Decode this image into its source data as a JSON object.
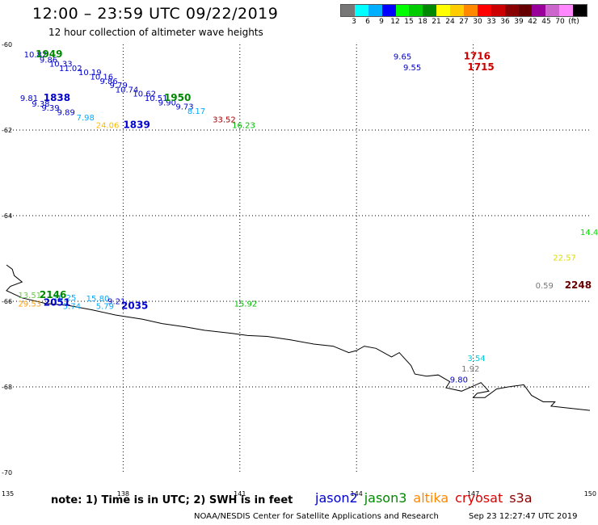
{
  "header": {
    "title": "12:00 – 23:59 UTC 09/22/2019",
    "subtitle": "12 hour collection of altimeter wave heights"
  },
  "scale": {
    "colors": [
      "#777777",
      "#00ffff",
      "#00b0ff",
      "#0000ff",
      "#00ff00",
      "#00cc00",
      "#008800",
      "#ffff00",
      "#ffcc00",
      "#ff8800",
      "#ff0000",
      "#cc0000",
      "#880000",
      "#660000",
      "#990099",
      "#cc66cc",
      "#ff88ff",
      "#000000"
    ],
    "labels": [
      "3",
      "6",
      "9",
      "12",
      "15",
      "18",
      "21",
      "24",
      "27",
      "30",
      "33",
      "36",
      "39",
      "42",
      "45",
      "70",
      "(ft)"
    ]
  },
  "map": {
    "lat_labels": [
      "-60",
      "-62",
      "-64",
      "-66",
      "-68",
      "-70"
    ],
    "lon_labels": [
      "135",
      "138",
      "141",
      "144",
      "147",
      "150"
    ],
    "lat_range": [
      -70,
      -60
    ],
    "lon_range": [
      135,
      150
    ],
    "grid": "dotted",
    "observations": [
      {
        "text": "10.82",
        "lon": 135.45,
        "lat": -60.3,
        "color": "#0000cc"
      },
      {
        "text": "9.86",
        "lon": 135.85,
        "lat": -60.42,
        "color": "#0000cc"
      },
      {
        "text": "10.33",
        "lon": 136.1,
        "lat": -60.52,
        "color": "#0000cc"
      },
      {
        "text": "11.02",
        "lon": 136.35,
        "lat": -60.62,
        "color": "#0000cc"
      },
      {
        "text": "10.19",
        "lon": 136.85,
        "lat": -60.72,
        "color": "#0000cc"
      },
      {
        "text": "10.16",
        "lon": 137.15,
        "lat": -60.82,
        "color": "#0000cc"
      },
      {
        "text": "9.86",
        "lon": 137.4,
        "lat": -60.92,
        "color": "#0000cc"
      },
      {
        "text": "9.79",
        "lon": 137.65,
        "lat": -61.02,
        "color": "#0000cc"
      },
      {
        "text": "10.74",
        "lon": 137.8,
        "lat": -61.12,
        "color": "#0000cc"
      },
      {
        "text": "10.62",
        "lon": 138.25,
        "lat": -61.22,
        "color": "#0000cc"
      },
      {
        "text": "10.51",
        "lon": 138.55,
        "lat": -61.32,
        "color": "#0000cc"
      },
      {
        "text": "9.90",
        "lon": 138.9,
        "lat": -61.42,
        "color": "#0000cc"
      },
      {
        "text": "9.73",
        "lon": 139.35,
        "lat": -61.52,
        "color": "#0000cc"
      },
      {
        "text": "8.17",
        "lon": 139.65,
        "lat": -61.62,
        "color": "#00aaff"
      },
      {
        "text": "33.52",
        "lon": 140.3,
        "lat": -61.82,
        "color": "#aa0000"
      },
      {
        "text": "16.23",
        "lon": 140.8,
        "lat": -61.95,
        "color": "#00bb00"
      },
      {
        "text": "9.81",
        "lon": 135.35,
        "lat": -61.32,
        "color": "#0000cc"
      },
      {
        "text": "9.38",
        "lon": 135.65,
        "lat": -61.45,
        "color": "#0000cc"
      },
      {
        "text": "9.39",
        "lon": 135.9,
        "lat": -61.55,
        "color": "#0000cc"
      },
      {
        "text": "9.89",
        "lon": 136.3,
        "lat": -61.65,
        "color": "#0000cc"
      },
      {
        "text": "7.98",
        "lon": 136.8,
        "lat": -61.77,
        "color": "#00aaff"
      },
      {
        "text": "24.06",
        "lon": 137.3,
        "lat": -61.95,
        "color": "#ffbb00"
      },
      {
        "text": "9.65",
        "lon": 144.95,
        "lat": -60.35,
        "color": "#0000cc"
      },
      {
        "text": "9.55",
        "lon": 145.2,
        "lat": -60.6,
        "color": "#0000cc"
      },
      {
        "text": "14.4",
        "lon": 149.75,
        "lat": -64.45,
        "color": "#00dd00"
      },
      {
        "text": "22.57",
        "lon": 149.05,
        "lat": -65.05,
        "color": "#dddd00"
      },
      {
        "text": "0.59",
        "lon": 148.6,
        "lat": -65.7,
        "color": "#777777"
      },
      {
        "text": "13.51",
        "lon": 135.3,
        "lat": -65.92,
        "color": "#66cc44"
      },
      {
        "text": "29.53",
        "lon": 135.3,
        "lat": -66.12,
        "color": "#ff9900"
      },
      {
        "text": "16.25",
        "lon": 136.2,
        "lat": -65.98,
        "color": "#00aaff"
      },
      {
        "text": "15.80",
        "lon": 137.05,
        "lat": -66.0,
        "color": "#00aaff"
      },
      {
        "text": "9.21",
        "lon": 137.6,
        "lat": -66.07,
        "color": "#0000cc"
      },
      {
        "text": "5.74",
        "lon": 136.45,
        "lat": -66.18,
        "color": "#00aaff"
      },
      {
        "text": "5.79",
        "lon": 137.3,
        "lat": -66.18,
        "color": "#00aaff"
      },
      {
        "text": "15.92",
        "lon": 140.85,
        "lat": -66.12,
        "color": "#00bb00"
      },
      {
        "text": "3.54",
        "lon": 146.85,
        "lat": -67.4,
        "color": "#00ccdd"
      },
      {
        "text": "1.92",
        "lon": 146.7,
        "lat": -67.64,
        "color": "#777777"
      },
      {
        "text": "9.80",
        "lon": 146.4,
        "lat": -67.9,
        "color": "#0000cc"
      }
    ],
    "time_labels": [
      {
        "text": "1949",
        "lon": 135.75,
        "lat": -60.3,
        "color": "#008800"
      },
      {
        "text": "1838",
        "lon": 135.95,
        "lat": -61.32,
        "color": "#0000cc"
      },
      {
        "text": "1950",
        "lon": 139.05,
        "lat": -61.32,
        "color": "#008800"
      },
      {
        "text": "1839",
        "lon": 138.0,
        "lat": -61.95,
        "color": "#0000cc"
      },
      {
        "text": "1716",
        "lon": 146.75,
        "lat": -60.35,
        "color": "#cc0000"
      },
      {
        "text": "1715",
        "lon": 146.85,
        "lat": -60.6,
        "color": "#cc0000"
      },
      {
        "text": "2248",
        "lon": 149.35,
        "lat": -65.7,
        "color": "#660000"
      },
      {
        "text": "2146",
        "lon": 135.85,
        "lat": -65.92,
        "color": "#008800"
      },
      {
        "text": "2051",
        "lon": 135.95,
        "lat": -66.1,
        "color": "#0000cc"
      },
      {
        "text": "2035",
        "lon": 137.95,
        "lat": -66.18,
        "color": "#0000cc"
      }
    ],
    "coastline": [
      [
        135.0,
        -65.15
      ],
      [
        135.15,
        -65.25
      ],
      [
        135.2,
        -65.4
      ],
      [
        135.4,
        -65.55
      ],
      [
        135.1,
        -65.65
      ],
      [
        135.0,
        -65.75
      ],
      [
        135.4,
        -65.92
      ],
      [
        136.0,
        -66.05
      ],
      [
        136.6,
        -66.1
      ],
      [
        137.2,
        -66.2
      ],
      [
        137.8,
        -66.32
      ],
      [
        138.5,
        -66.42
      ],
      [
        139.0,
        -66.52
      ],
      [
        139.6,
        -66.6
      ],
      [
        140.1,
        -66.68
      ],
      [
        140.8,
        -66.75
      ],
      [
        141.2,
        -66.8
      ],
      [
        141.7,
        -66.82
      ],
      [
        142.3,
        -66.9
      ],
      [
        142.9,
        -67.0
      ],
      [
        143.4,
        -67.05
      ],
      [
        143.8,
        -67.2
      ],
      [
        144.0,
        -67.15
      ],
      [
        144.2,
        -67.05
      ],
      [
        144.5,
        -67.1
      ],
      [
        144.9,
        -67.3
      ],
      [
        145.1,
        -67.2
      ],
      [
        145.4,
        -67.5
      ],
      [
        145.5,
        -67.7
      ],
      [
        145.8,
        -67.75
      ],
      [
        146.1,
        -67.72
      ],
      [
        146.4,
        -67.88
      ],
      [
        146.3,
        -68.02
      ],
      [
        146.7,
        -68.1
      ],
      [
        147.2,
        -67.9
      ],
      [
        147.4,
        -68.1
      ],
      [
        147.1,
        -68.15
      ],
      [
        147.0,
        -68.25
      ],
      [
        147.3,
        -68.25
      ],
      [
        147.6,
        -68.05
      ],
      [
        147.9,
        -68.0
      ],
      [
        148.3,
        -67.95
      ],
      [
        148.5,
        -68.2
      ],
      [
        148.8,
        -68.35
      ],
      [
        149.1,
        -68.35
      ],
      [
        149.0,
        -68.45
      ],
      [
        149.5,
        -68.5
      ],
      [
        150.0,
        -68.55
      ]
    ]
  },
  "footer": {
    "note": "note:  1) Time is in UTC;  2) SWH is in feet",
    "legend": [
      {
        "text": "jason2",
        "color": "#0000cc"
      },
      {
        "text": "jason3",
        "color": "#008800"
      },
      {
        "text": "altika",
        "color": "#ff8800"
      },
      {
        "text": "cryosat",
        "color": "#dd0000"
      },
      {
        "text": "s3a",
        "color": "#880000"
      }
    ],
    "credit": "NOAA/NESDIS Center for Satellite Applications and Research",
    "timestamp": "Sep 23 12:27:47 UTC 2019"
  }
}
